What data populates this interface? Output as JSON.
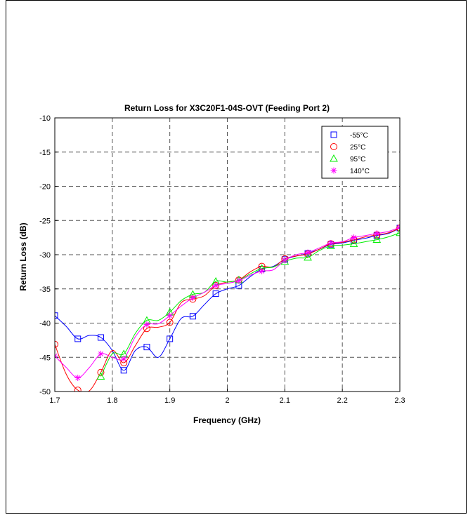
{
  "chart_data": {
    "type": "line",
    "title": "Return Loss for X3C20F1-04S-OVT (Feeding Port 2)",
    "xlabel": "Frequency (GHz)",
    "ylabel": "Return Loss (dB)",
    "xlim": [
      1.7,
      2.3
    ],
    "ylim": [
      -50,
      -10
    ],
    "xticks": [
      "1.7",
      "1.8",
      "1.9",
      "2",
      "2.1",
      "2.2",
      "2.3"
    ],
    "yticks": [
      "-10",
      "-15",
      "-20",
      "-25",
      "-30",
      "-35",
      "-40",
      "-45",
      "-50"
    ],
    "grid": true,
    "legend_position": "top-right",
    "series": [
      {
        "name": "-55°C",
        "color": "#0000ff",
        "marker": "square",
        "x": [
          1.7,
          1.72,
          1.74,
          1.76,
          1.78,
          1.8,
          1.82,
          1.84,
          1.86,
          1.88,
          1.9,
          1.92,
          1.94,
          1.96,
          1.98,
          2.0,
          2.02,
          2.04,
          2.06,
          2.08,
          2.1,
          2.12,
          2.14,
          2.16,
          2.18,
          2.2,
          2.22,
          2.24,
          2.26,
          2.28,
          2.3
        ],
        "y": [
          -38.9,
          -40.5,
          -42.3,
          -41.8,
          -42.1,
          -44.0,
          -46.9,
          -44.0,
          -43.5,
          -45.0,
          -42.3,
          -39.3,
          -39.0,
          -37.3,
          -35.7,
          -35.0,
          -34.5,
          -33.2,
          -32.1,
          -31.7,
          -30.7,
          -30.2,
          -29.8,
          -29.2,
          -28.5,
          -28.3,
          -27.9,
          -27.6,
          -27.2,
          -26.9,
          -26.1
        ]
      },
      {
        "name": "25°C",
        "color": "#ff0000",
        "marker": "circle",
        "x": [
          1.7,
          1.72,
          1.74,
          1.76,
          1.78,
          1.8,
          1.82,
          1.84,
          1.86,
          1.88,
          1.9,
          1.92,
          1.94,
          1.96,
          1.98,
          2.0,
          2.02,
          2.04,
          2.06,
          2.08,
          2.1,
          2.12,
          2.14,
          2.16,
          2.18,
          2.2,
          2.22,
          2.24,
          2.26,
          2.28,
          2.3
        ],
        "y": [
          -43.1,
          -47.5,
          -49.8,
          -49.9,
          -47.2,
          -44.0,
          -45.8,
          -43.3,
          -40.8,
          -40.6,
          -39.9,
          -37.0,
          -36.5,
          -36.0,
          -34.5,
          -34.0,
          -33.7,
          -32.5,
          -31.7,
          -31.8,
          -30.6,
          -30.2,
          -29.9,
          -29.2,
          -28.4,
          -28.2,
          -27.8,
          -27.4,
          -27.1,
          -26.8,
          -26.1
        ]
      },
      {
        "name": "95°C",
        "color": "#00ee00",
        "marker": "triangle",
        "x": [
          1.78,
          1.8,
          1.82,
          1.84,
          1.86,
          1.88,
          1.9,
          1.92,
          1.94,
          1.96,
          1.98,
          2.0,
          2.02,
          2.04,
          2.06,
          2.08,
          2.1,
          2.12,
          2.14,
          2.16,
          2.18,
          2.2,
          2.22,
          2.24,
          2.26,
          2.28,
          2.3
        ],
        "y": [
          -47.8,
          -44.5,
          -44.5,
          -41.5,
          -39.6,
          -39.6,
          -38.4,
          -36.7,
          -35.8,
          -35.5,
          -33.9,
          -34.0,
          -33.7,
          -32.8,
          -32.0,
          -31.8,
          -31.0,
          -30.5,
          -30.4,
          -29.4,
          -28.7,
          -28.6,
          -28.4,
          -28.1,
          -27.8,
          -27.4,
          -26.8
        ]
      },
      {
        "name": "140°C",
        "color": "#ff00ff",
        "marker": "star",
        "x": [
          1.7,
          1.72,
          1.74,
          1.76,
          1.78,
          1.8,
          1.82,
          1.84,
          1.86,
          1.88,
          1.9,
          1.92,
          1.94,
          1.96,
          1.98,
          2.0,
          2.02,
          2.04,
          2.06,
          2.08,
          2.1,
          2.12,
          2.14,
          2.16,
          2.18,
          2.2,
          2.22,
          2.24,
          2.26,
          2.28,
          2.3
        ],
        "y": [
          -44.8,
          -46.5,
          -48.0,
          -46.5,
          -44.5,
          -45.0,
          -45.2,
          -42.0,
          -40.2,
          -40.1,
          -38.9,
          -37.5,
          -36.3,
          -35.5,
          -34.5,
          -34.2,
          -33.8,
          -33.0,
          -32.4,
          -32.2,
          -30.8,
          -30.0,
          -29.7,
          -29.0,
          -28.3,
          -28.1,
          -27.5,
          -27.2,
          -26.9,
          -26.6,
          -26.0
        ]
      }
    ],
    "marker_x": [
      1.7,
      1.74,
      1.78,
      1.82,
      1.86,
      1.9,
      1.94,
      1.98,
      2.02,
      2.06,
      2.1,
      2.14,
      2.18,
      2.22,
      2.26,
      2.3
    ]
  }
}
